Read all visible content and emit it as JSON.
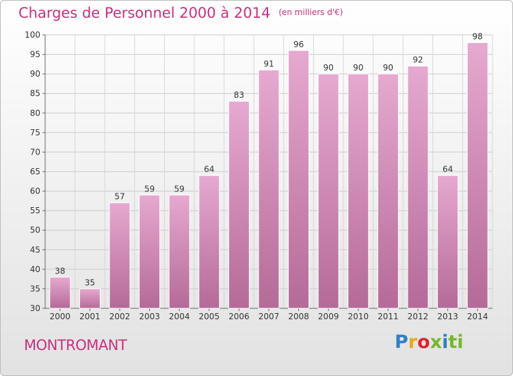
{
  "header": {
    "title": "Charges de Personnel 2000 à 2014",
    "subtitle": "(en milliers d'€)"
  },
  "footer": {
    "commune": "MONTROMANT",
    "logo_text": "Proxiti",
    "logo_letters": [
      "P",
      "r",
      "o",
      "x",
      "i",
      "ti"
    ]
  },
  "colors": {
    "bar_top": "#e6a9d0",
    "bar_bottom": "#b56a98",
    "title": "#c8307f"
  },
  "chart_data": {
    "type": "bar",
    "title": "Charges de Personnel 2000 à 2014",
    "subtitle": "(en milliers d'€)",
    "categories": [
      "2000",
      "2001",
      "2002",
      "2003",
      "2004",
      "2005",
      "2006",
      "2007",
      "2008",
      "2009",
      "2010",
      "2011",
      "2012",
      "2013",
      "2014"
    ],
    "values": [
      38,
      35,
      57,
      59,
      59,
      64,
      83,
      91,
      96,
      90,
      90,
      90,
      92,
      64,
      98
    ],
    "ylim": [
      30,
      100
    ],
    "yticks": [
      30,
      35,
      40,
      45,
      50,
      55,
      60,
      65,
      70,
      75,
      80,
      85,
      90,
      95,
      100
    ],
    "grid": true,
    "xlabel": "",
    "ylabel": ""
  }
}
